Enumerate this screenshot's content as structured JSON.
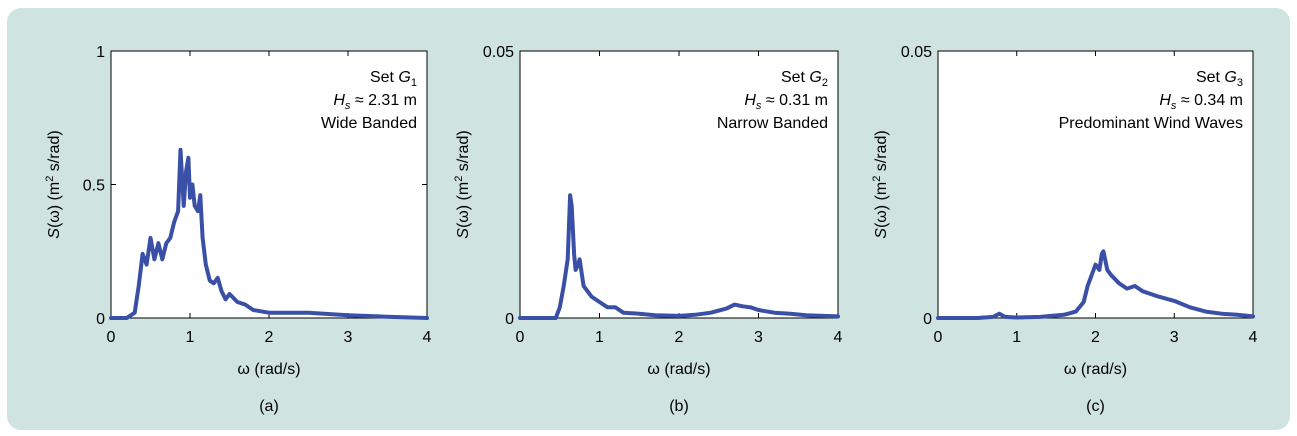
{
  "colors": {
    "background": "#cfe3e0",
    "plot_area": "#ffffff",
    "line": "#3a4fa6"
  },
  "chart_data": [
    {
      "type": "line",
      "panel_label": "(a)",
      "xlabel": "ω (rad/s)",
      "ylabel": "S(ω) (m² s/rad)",
      "xlim": [
        0,
        4
      ],
      "ylim": [
        0,
        1
      ],
      "xticks": [
        "0",
        "1",
        "2",
        "3",
        "4"
      ],
      "yticks": [
        "0",
        "0.5",
        "1"
      ],
      "grid": false,
      "annotation": [
        "Set G1",
        "Hs ≈ 2.31 m",
        "Wide Banded"
      ],
      "series": [
        {
          "x": [
            0,
            0.2,
            0.3,
            0.35,
            0.4,
            0.45,
            0.5,
            0.55,
            0.6,
            0.65,
            0.7,
            0.75,
            0.8,
            0.85,
            0.88,
            0.92,
            0.95,
            0.98,
            1.0,
            1.03,
            1.06,
            1.1,
            1.13,
            1.16,
            1.2,
            1.25,
            1.3,
            1.35,
            1.4,
            1.45,
            1.5,
            1.6,
            1.7,
            1.8,
            2.0,
            2.2,
            2.5,
            3.0,
            3.5,
            4.0
          ],
          "values": [
            0,
            0,
            0.02,
            0.12,
            0.24,
            0.2,
            0.3,
            0.22,
            0.28,
            0.22,
            0.28,
            0.3,
            0.36,
            0.4,
            0.63,
            0.42,
            0.55,
            0.6,
            0.45,
            0.5,
            0.42,
            0.4,
            0.46,
            0.3,
            0.2,
            0.14,
            0.13,
            0.15,
            0.1,
            0.07,
            0.09,
            0.06,
            0.05,
            0.03,
            0.02,
            0.02,
            0.02,
            0.01,
            0.005,
            0
          ]
        }
      ]
    },
    {
      "type": "line",
      "panel_label": "(b)",
      "xlabel": "ω (rad/s)",
      "ylabel": "S(ω) (m² s/rad)",
      "xlim": [
        0,
        4
      ],
      "ylim": [
        0,
        0.05
      ],
      "xticks": [
        "0",
        "1",
        "2",
        "3",
        "4"
      ],
      "yticks": [
        "0",
        "0.05"
      ],
      "grid": false,
      "annotation": [
        "Set G2",
        "Hs ≈ 0.31 m",
        "Narrow Banded"
      ],
      "series": [
        {
          "x": [
            0,
            0.3,
            0.45,
            0.5,
            0.55,
            0.6,
            0.63,
            0.65,
            0.68,
            0.7,
            0.73,
            0.75,
            0.8,
            0.85,
            0.9,
            1.0,
            1.1,
            1.2,
            1.3,
            1.5,
            1.7,
            2.0,
            2.2,
            2.4,
            2.6,
            2.7,
            2.8,
            2.9,
            3.0,
            3.2,
            3.4,
            3.6,
            4.0
          ],
          "values": [
            0,
            0,
            0.0,
            0.002,
            0.006,
            0.011,
            0.023,
            0.021,
            0.012,
            0.009,
            0.01,
            0.011,
            0.006,
            0.005,
            0.004,
            0.003,
            0.002,
            0.002,
            0.001,
            0.0008,
            0.0005,
            0.0004,
            0.0006,
            0.001,
            0.0018,
            0.0025,
            0.0022,
            0.002,
            0.0015,
            0.001,
            0.0008,
            0.0005,
            0.0003
          ]
        }
      ]
    },
    {
      "type": "line",
      "panel_label": "(c)",
      "xlabel": "ω (rad/s)",
      "ylabel": "S(ω) (m² s/rad)",
      "xlim": [
        0,
        4
      ],
      "ylim": [
        0,
        0.05
      ],
      "xticks": [
        "0",
        "1",
        "2",
        "3",
        "4"
      ],
      "yticks": [
        "0",
        "0.05"
      ],
      "grid": false,
      "annotation": [
        "Set G3",
        "Hs ≈ 0.34 m",
        "Predominant Wind Waves"
      ],
      "series": [
        {
          "x": [
            0,
            0.5,
            0.7,
            0.78,
            0.85,
            1.0,
            1.3,
            1.6,
            1.75,
            1.85,
            1.9,
            1.95,
            2.0,
            2.05,
            2.08,
            2.1,
            2.15,
            2.2,
            2.3,
            2.4,
            2.5,
            2.6,
            2.8,
            3.0,
            3.2,
            3.4,
            3.6,
            3.8,
            4.0
          ],
          "values": [
            0,
            0,
            0.0002,
            0.0008,
            0.0002,
            0.0001,
            0.0002,
            0.0006,
            0.0012,
            0.003,
            0.006,
            0.008,
            0.01,
            0.009,
            0.012,
            0.0125,
            0.009,
            0.008,
            0.0065,
            0.0055,
            0.006,
            0.005,
            0.004,
            0.0032,
            0.002,
            0.0012,
            0.0008,
            0.0006,
            0.0003
          ]
        }
      ]
    }
  ]
}
